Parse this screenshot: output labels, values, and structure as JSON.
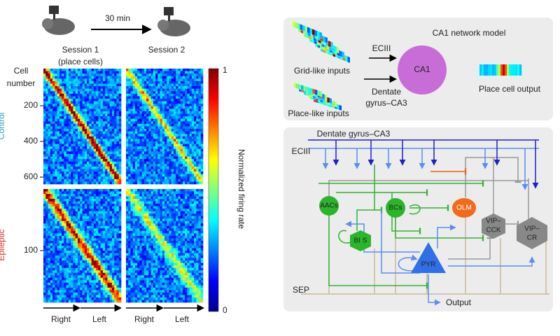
{
  "left": {
    "interval": "30 min",
    "session1": "Session  1",
    "session1_sub": "(place cells)",
    "session2": "Session  2",
    "y_axis_label": [
      "Cell",
      "number"
    ],
    "control": "Control",
    "epileptic": "Epileptic",
    "control_ticks": [
      200,
      400,
      600
    ],
    "epileptic_ticks": [
      100
    ],
    "colorbar": {
      "label": "Normalized firing rate",
      "max": 1,
      "min": 0
    },
    "directions": [
      [
        "Right",
        "Left"
      ],
      [
        "Right",
        "Left"
      ]
    ]
  },
  "right": {
    "title": "CA1 network model",
    "grid_inputs": "Grid-like inputs",
    "place_inputs": "Place-like inputs",
    "ec": "ECIII",
    "dg": [
      "Dentate",
      "gyrus–CA3"
    ],
    "ca1": "CA1",
    "output": "Place cell output",
    "network": {
      "dg": "Dentate gyrus–CA3",
      "ec": "ECIII",
      "sep": "SEP",
      "output": "Output",
      "nodes": [
        [
          "AACs"
        ],
        [
          "BCs"
        ],
        [
          "OLM"
        ],
        [
          "VIP–",
          "CCK"
        ],
        [
          "VIP–",
          "CR"
        ],
        [
          "BI S"
        ],
        [
          "PYR"
        ]
      ]
    }
  }
}
